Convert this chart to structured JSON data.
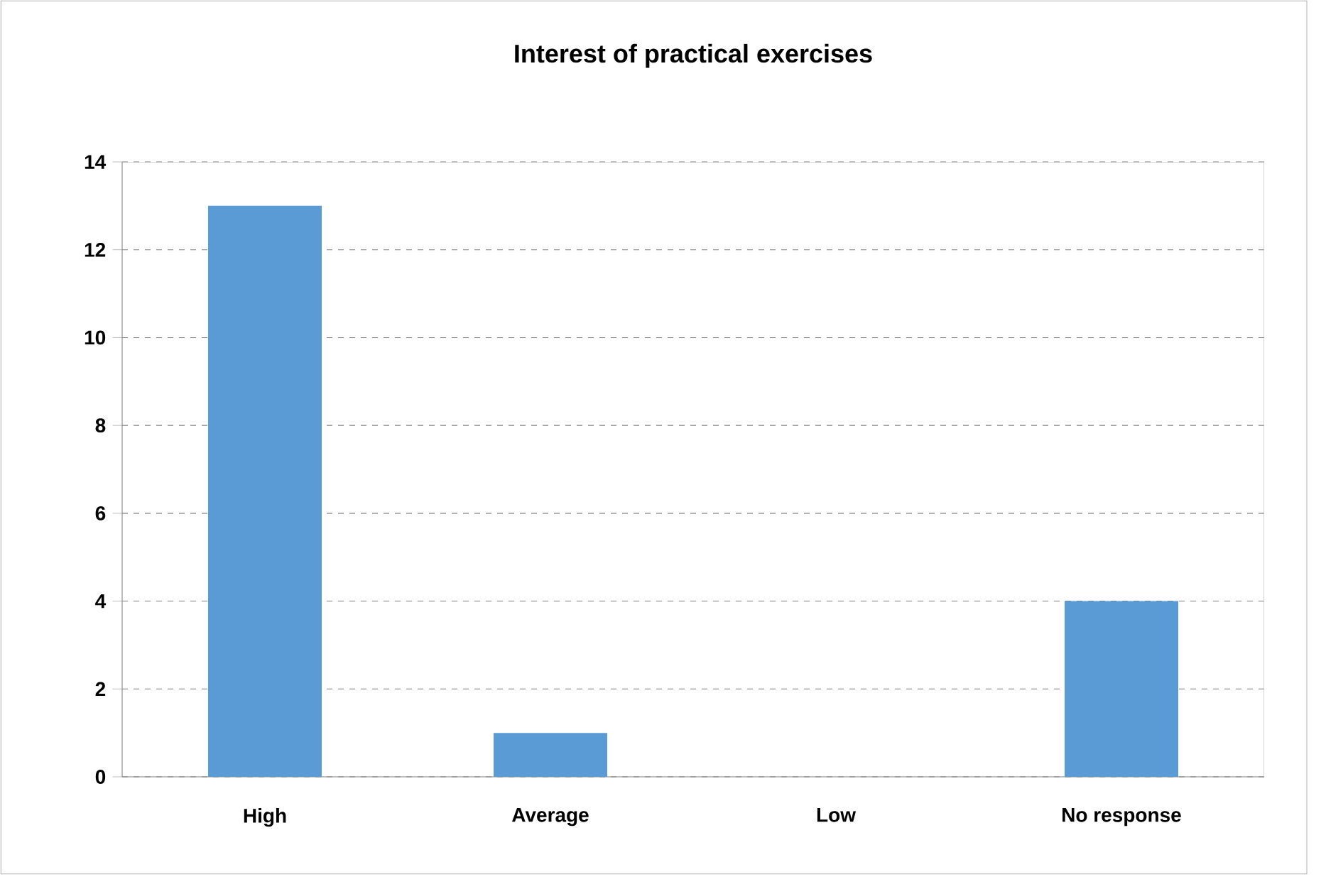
{
  "chart_data": {
    "type": "bar",
    "title": "Interest of practical exercises",
    "categories": [
      "High",
      "Average",
      "Low",
      "No response"
    ],
    "values": [
      13,
      1,
      0,
      4
    ],
    "color": "#5b9bd5",
    "ylim": [
      0,
      14
    ],
    "yticks": [
      0,
      2,
      4,
      6,
      8,
      10,
      12,
      14
    ],
    "grid": "y"
  }
}
